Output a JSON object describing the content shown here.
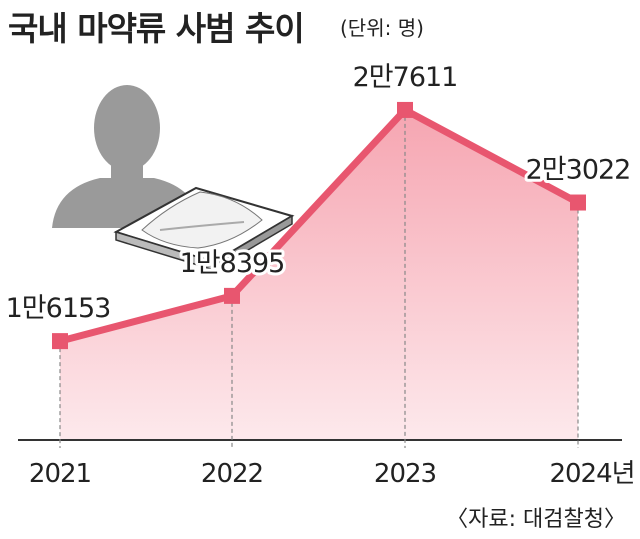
{
  "chart_data": {
    "type": "line",
    "title": "국내 마약류 사범 추이",
    "unit": "(단위: 명)",
    "source": "〈자료: 대검찰청〉",
    "categories": [
      "2021",
      "2022",
      "2023",
      "2024년"
    ],
    "values": [
      16153,
      18395,
      27611,
      23022
    ],
    "data_labels": [
      "1만6153",
      "1만8395",
      "2만7611",
      "2만3022"
    ],
    "ylim": [
      11500,
      28500
    ],
    "grid": false,
    "colors": {
      "line": "#e8566f",
      "marker": "#e8566f",
      "fill_top": "#f6a5b1",
      "fill_bottom": "#fde9ec",
      "axis": "#333333",
      "dropline": "#888888"
    },
    "illustration": "person-silhouette-with-powder-tray-icon"
  }
}
